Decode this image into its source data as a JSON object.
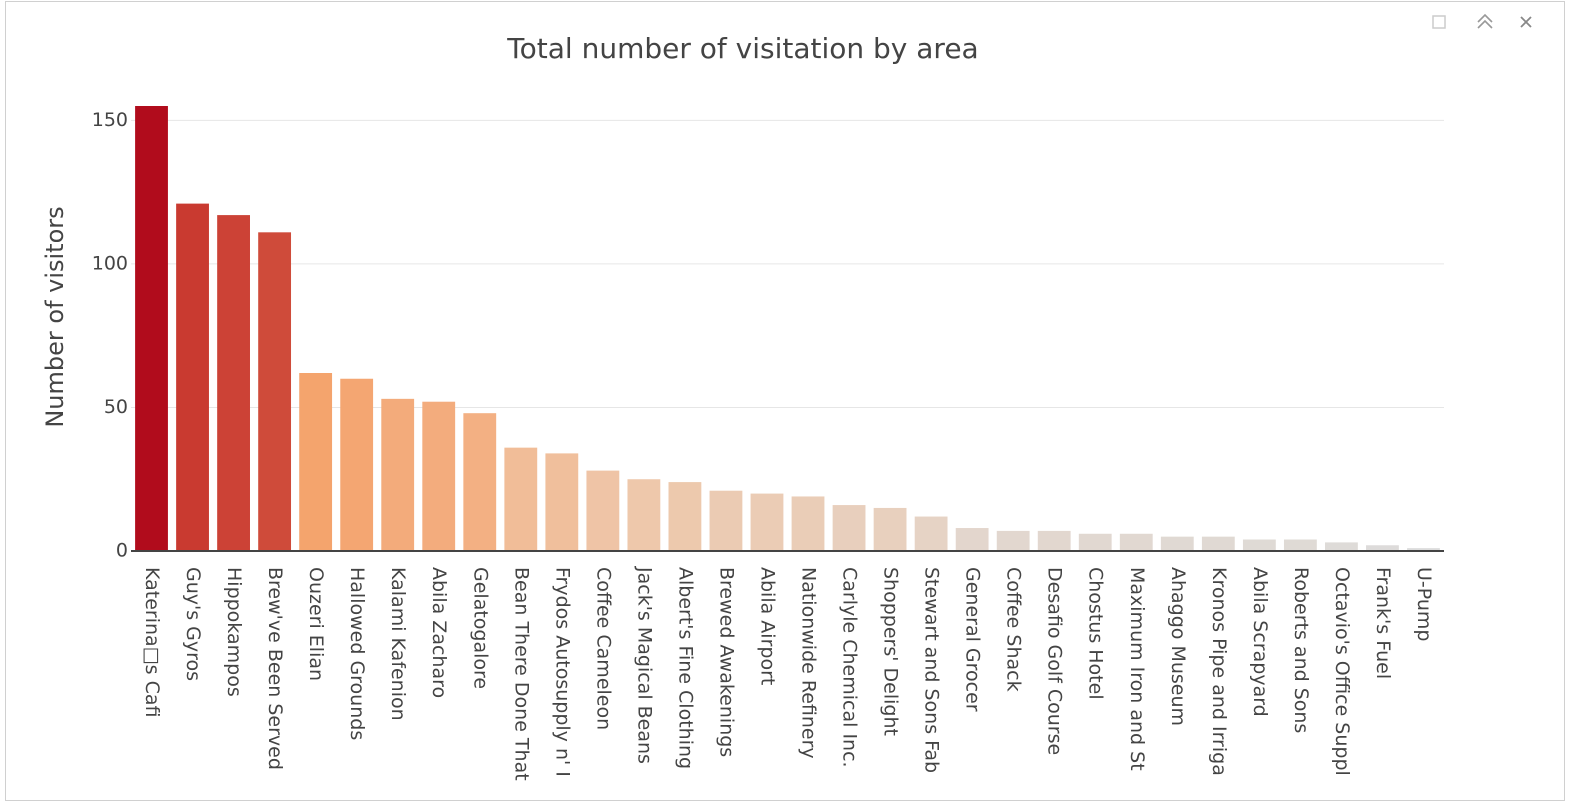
{
  "chart_data": {
    "type": "bar",
    "title": "Total number of visitation by area",
    "y_label": "Number of visitors",
    "categories": [
      "Katerina□s Cafi",
      "Guy's Gyros",
      "Hippokampos",
      "Brew've Been Served",
      "Ouzeri Elian",
      "Hallowed Grounds",
      "Kalami Kafenion",
      "Abila Zacharo",
      "Gelatogalore",
      "Bean There Done That",
      "Frydos Autosupply n' I",
      "Coffee Cameleon",
      "Jack's Magical Beans",
      "Albert's Fine Clothing",
      "Brewed Awakenings",
      "Abila Airport",
      "Nationwide Refinery",
      "Carlyle Chemical Inc.",
      "Shoppers' Delight",
      "Stewart and Sons Fab",
      "General Grocer",
      "Coffee Shack",
      "Desafio Golf Course",
      "Chostus Hotel",
      "Maximum Iron and St",
      "Ahaggo Museum",
      "Kronos Pipe and Irriga",
      "Abila Scrapyard",
      "Roberts and Sons",
      "Octavio's Office Suppl",
      "Frank's Fuel",
      "U-Pump"
    ],
    "values": [
      155,
      121,
      117,
      111,
      62,
      60,
      53,
      52,
      48,
      36,
      34,
      28,
      25,
      24,
      21,
      20,
      19,
      16,
      15,
      12,
      8,
      7,
      7,
      6,
      6,
      5,
      5,
      4,
      4,
      3,
      2,
      1
    ],
    "colors": [
      "#b10c1c",
      "#c93a30",
      "#cc4236",
      "#cf4b3a",
      "#f4a46d",
      "#f4a672",
      "#f3ab7b",
      "#f3ac7d",
      "#f3b083",
      "#f1bd98",
      "#f0bf9c",
      "#efc4a6",
      "#eec8ab",
      "#edc9ad",
      "#ebcbb3",
      "#ebccb5",
      "#eacdb7",
      "#e8cfbd",
      "#e8d0be",
      "#e6d3c5",
      "#e3d6cd",
      "#e2d7cf",
      "#e2d7cf",
      "#e1d8d1",
      "#e1d8d1",
      "#e0d9d3",
      "#e0d9d3",
      "#dfdad5",
      "#dfdad5",
      "#dedbd8",
      "#dddbda",
      "#dcdcdc"
    ],
    "ylim": [
      0,
      155
    ],
    "yticks": [
      0,
      50,
      100,
      150
    ],
    "grid": true
  }
}
